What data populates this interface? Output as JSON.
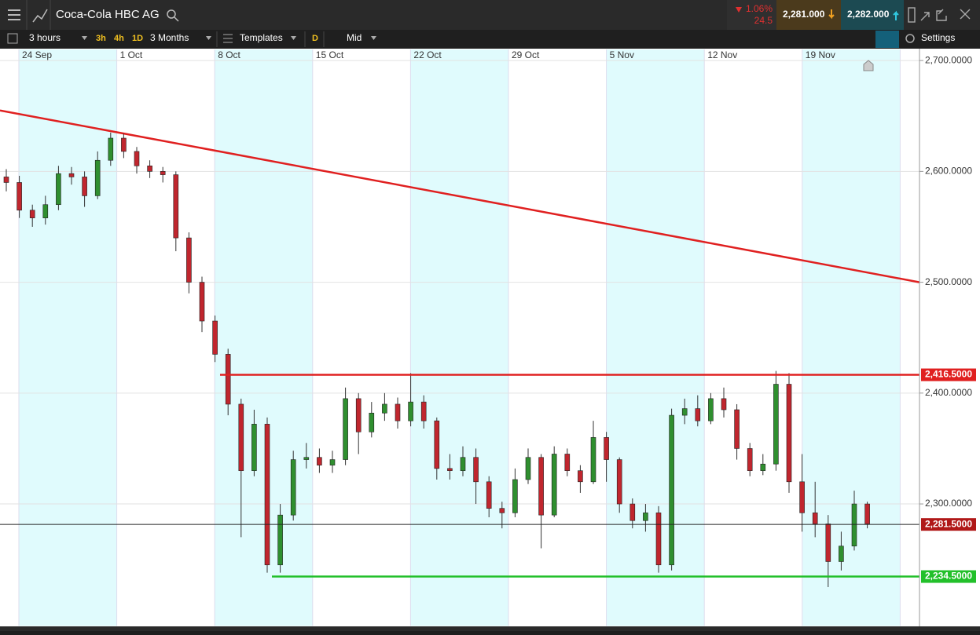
{
  "toolbar": {
    "title": "Coca-Cola HBC AG",
    "change_pct": "1.06%",
    "change_abs": "24.5",
    "sell": "2,281.000",
    "buy": "2,282.000",
    "interval": "3 hours",
    "quick": [
      "3h",
      "4h",
      "1D"
    ],
    "range": "3 Months",
    "templates": "Templates",
    "d": "D",
    "price_mode": "Mid",
    "settings": "Settings"
  },
  "chart_data": {
    "type": "candlestick",
    "date_labels": [
      "24 Sep",
      "1 Oct",
      "8 Oct",
      "15 Oct",
      "22 Oct",
      "29 Oct",
      "5 Nov",
      "12 Nov",
      "19 Nov"
    ],
    "open": [
      2595,
      2590,
      2565,
      2558,
      2570,
      2598,
      2595,
      2578,
      2610,
      2630,
      2618,
      2605,
      2600,
      2597,
      2540,
      2500,
      2465,
      2435,
      2390,
      2330,
      2372,
      2245,
      2290,
      2340,
      2342,
      2335,
      2340,
      2395,
      2365,
      2382,
      2390,
      2375,
      2392,
      2375,
      2332,
      2330,
      2342,
      2320,
      2296,
      2292,
      2322,
      2342,
      2290,
      2345,
      2330,
      2320,
      2360,
      2340,
      2300,
      2285,
      2292,
      2245,
      2380,
      2386,
      2375,
      2395,
      2385,
      2350,
      2330,
      2336,
      2408,
      2320,
      2292,
      2282,
      2248,
      2262,
      2300
    ],
    "high": [
      2602,
      2596,
      2570,
      2578,
      2605,
      2604,
      2600,
      2618,
      2635,
      2634,
      2622,
      2610,
      2604,
      2600,
      2545,
      2505,
      2470,
      2440,
      2395,
      2385,
      2378,
      2300,
      2348,
      2355,
      2350,
      2348,
      2405,
      2400,
      2392,
      2400,
      2396,
      2418,
      2398,
      2378,
      2345,
      2352,
      2350,
      2325,
      2302,
      2332,
      2350,
      2345,
      2352,
      2350,
      2335,
      2375,
      2365,
      2342,
      2305,
      2300,
      2298,
      2386,
      2395,
      2398,
      2400,
      2405,
      2390,
      2355,
      2345,
      2420,
      2418,
      2345,
      2320,
      2290,
      2275,
      2312,
      2302
    ],
    "low": [
      2582,
      2558,
      2550,
      2552,
      2565,
      2588,
      2568,
      2575,
      2605,
      2612,
      2598,
      2594,
      2590,
      2528,
      2490,
      2455,
      2428,
      2380,
      2270,
      2325,
      2238,
      2238,
      2285,
      2332,
      2328,
      2328,
      2335,
      2345,
      2360,
      2375,
      2368,
      2370,
      2368,
      2322,
      2322,
      2325,
      2300,
      2288,
      2278,
      2288,
      2318,
      2260,
      2288,
      2325,
      2310,
      2318,
      2320,
      2292,
      2278,
      2275,
      2238,
      2240,
      2372,
      2370,
      2372,
      2378,
      2340,
      2325,
      2326,
      2330,
      2310,
      2275,
      2270,
      2225,
      2240,
      2258,
      2278
    ],
    "close": [
      2590,
      2565,
      2558,
      2570,
      2598,
      2595,
      2578,
      2610,
      2630,
      2618,
      2605,
      2600,
      2597,
      2540,
      2500,
      2465,
      2435,
      2390,
      2330,
      2372,
      2245,
      2290,
      2340,
      2342,
      2335,
      2340,
      2395,
      2365,
      2382,
      2390,
      2375,
      2392,
      2375,
      2332,
      2330,
      2342,
      2320,
      2296,
      2292,
      2322,
      2342,
      2290,
      2345,
      2330,
      2320,
      2360,
      2340,
      2300,
      2285,
      2292,
      2245,
      2380,
      2386,
      2375,
      2395,
      2385,
      2350,
      2330,
      2336,
      2408,
      2320,
      2292,
      2282,
      2248,
      2262,
      2300,
      2282
    ],
    "up_color": "#2f8f2f",
    "down_color": "#c0262e",
    "ylim": [
      2190,
      2710
    ],
    "yticks": [
      {
        "value": 2700,
        "label": "2,700.0000"
      },
      {
        "value": 2600,
        "label": "2,600.0000"
      },
      {
        "value": 2500,
        "label": "2,500.0000"
      },
      {
        "value": 2400,
        "label": "2,400.0000"
      },
      {
        "value": 2300,
        "label": "2,300.0000"
      }
    ],
    "trendline": {
      "values": [
        2655,
        2500
      ],
      "color": "#e02020"
    },
    "levels": [
      {
        "value": 2416.5,
        "label": "2,416.5000",
        "color": "#e02020"
      },
      {
        "value": 2281.5,
        "label": "2,281.5000",
        "color": "#b01818"
      },
      {
        "value": 2234.5,
        "label": "2,234.5000",
        "color": "#22c02a"
      }
    ],
    "grid": true
  }
}
